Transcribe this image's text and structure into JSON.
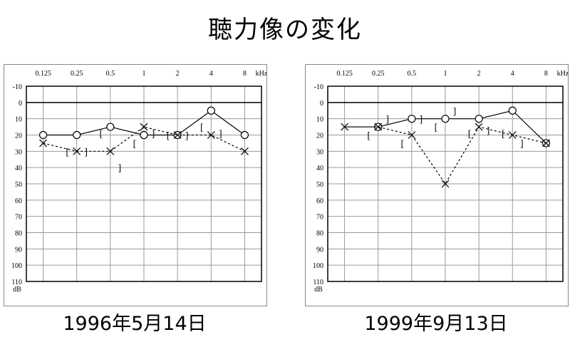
{
  "title": "聴力像の変化",
  "colors": {
    "line": "#000000",
    "grid": "#9a9a9a",
    "frame": "#000000"
  },
  "chart_data": [
    {
      "type": "line",
      "caption": "1996年5月14日",
      "x_categories": [
        "0.125",
        "0.25",
        "0.5",
        "1",
        "2",
        "4",
        "8"
      ],
      "x_unit": "kHz",
      "y_ticks": [
        "-10",
        "0",
        "10",
        "20",
        "30",
        "40",
        "50",
        "60",
        "70",
        "80",
        "90",
        "100",
        "110"
      ],
      "y_unit": "dB",
      "ylim": [
        -10,
        110
      ],
      "y_inverted": true,
      "grid": true,
      "series": [
        {
          "marker": "circle",
          "line": "solid",
          "x": [
            "0.125",
            "0.25",
            "0.5",
            "1",
            "2",
            "4",
            "8"
          ],
          "values": [
            20,
            20,
            15,
            20,
            20,
            5,
            20
          ]
        },
        {
          "marker": "cross",
          "line": "dashed",
          "x": [
            "0.125",
            "0.25",
            "0.5",
            "1",
            "2",
            "4",
            "8"
          ],
          "values": [
            25,
            30,
            30,
            15,
            20,
            20,
            30
          ]
        }
      ],
      "bone_right": [
        {
          "x": "0.25",
          "value": 30
        },
        {
          "x": "0.5",
          "value": 19
        },
        {
          "x": "1",
          "value": 25
        },
        {
          "x": "2",
          "value": 20
        },
        {
          "x": "4",
          "value": 15
        }
      ],
      "bone_left": [
        {
          "x": "0.25",
          "value": 30
        },
        {
          "x": "0.5",
          "value": 40
        },
        {
          "x": "1",
          "value": 19
        },
        {
          "x": "2",
          "value": 20
        },
        {
          "x": "4",
          "value": 19
        }
      ],
      "bracket_open": "[",
      "bracket_close": "]"
    },
    {
      "type": "line",
      "caption": "1999年9月13日",
      "x_categories": [
        "0.125",
        "0.25",
        "0.5",
        "1",
        "2",
        "4",
        "8"
      ],
      "x_unit": "kHz",
      "y_ticks": [
        "-10",
        "0",
        "10",
        "20",
        "30",
        "40",
        "50",
        "60",
        "70",
        "80",
        "90",
        "100",
        "110"
      ],
      "y_unit": "dB",
      "ylim": [
        -10,
        110
      ],
      "y_inverted": true,
      "grid": true,
      "series": [
        {
          "marker": "circle",
          "line": "solid",
          "x": [
            "0.25",
            "0.5",
            "1",
            "2",
            "4",
            "8"
          ],
          "values": [
            15,
            10,
            10,
            10,
            5,
            25
          ]
        },
        {
          "marker": "cross",
          "line": "dashed",
          "x": [
            "0.125",
            "0.25",
            "0.5",
            "1",
            "2",
            "4",
            "8"
          ],
          "values": [
            15,
            15,
            20,
            50,
            15,
            20,
            25
          ]
        }
      ],
      "solid_segments": [
        {
          "from": "0.125",
          "from_value": 15,
          "to": "0.25",
          "to_value": 15
        }
      ],
      "bone_right": [
        {
          "x": "0.25",
          "value": 20
        },
        {
          "x": "0.5",
          "value": 25
        },
        {
          "x": "1",
          "value": 15
        },
        {
          "x": "2",
          "value": 19
        },
        {
          "x": "4",
          "value": 19
        }
      ],
      "bone_left": [
        {
          "x": "0.25",
          "value": 10
        },
        {
          "x": "0.5",
          "value": 10
        },
        {
          "x": "1",
          "value": 5
        },
        {
          "x": "2",
          "value": 17
        },
        {
          "x": "4",
          "value": 25
        }
      ],
      "bracket_open": "[",
      "bracket_close": "]"
    }
  ]
}
